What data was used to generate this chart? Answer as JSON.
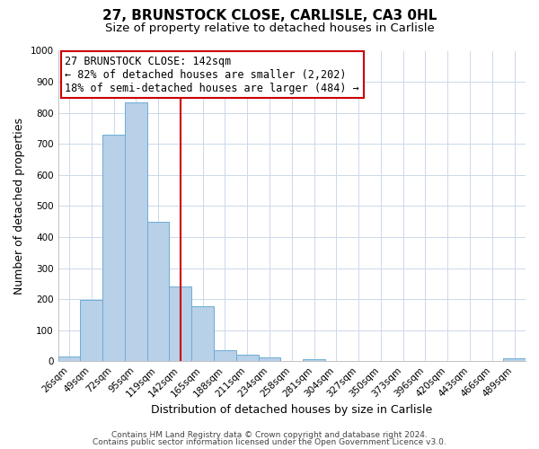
{
  "title": "27, BRUNSTOCK CLOSE, CARLISLE, CA3 0HL",
  "subtitle": "Size of property relative to detached houses in Carlisle",
  "xlabel": "Distribution of detached houses by size in Carlisle",
  "ylabel": "Number of detached properties",
  "bar_labels": [
    "26sqm",
    "49sqm",
    "72sqm",
    "95sqm",
    "119sqm",
    "142sqm",
    "165sqm",
    "188sqm",
    "211sqm",
    "234sqm",
    "258sqm",
    "281sqm",
    "304sqm",
    "327sqm",
    "350sqm",
    "373sqm",
    "396sqm",
    "420sqm",
    "443sqm",
    "466sqm",
    "489sqm"
  ],
  "bar_values": [
    15,
    196,
    731,
    833,
    450,
    240,
    178,
    35,
    22,
    13,
    0,
    5,
    0,
    0,
    0,
    0,
    0,
    0,
    0,
    0,
    8
  ],
  "bar_color": "#b8d0e8",
  "bar_edge_color": "#6aaed6",
  "vline_x": 5,
  "vline_color": "#cc0000",
  "ylim": [
    0,
    1000
  ],
  "yticks": [
    0,
    100,
    200,
    300,
    400,
    500,
    600,
    700,
    800,
    900,
    1000
  ],
  "annotation_title": "27 BRUNSTOCK CLOSE: 142sqm",
  "annotation_line1": "← 82% of detached houses are smaller (2,202)",
  "annotation_line2": "18% of semi-detached houses are larger (484) →",
  "annotation_box_color": "#cc0000",
  "footer1": "Contains HM Land Registry data © Crown copyright and database right 2024.",
  "footer2": "Contains public sector information licensed under the Open Government Licence v3.0.",
  "title_fontsize": 11,
  "subtitle_fontsize": 9.5,
  "axis_label_fontsize": 9,
  "tick_fontsize": 7.5,
  "annotation_fontsize": 8.5,
  "footer_fontsize": 6.5,
  "background_color": "#ffffff",
  "grid_color": "#ccd8ea"
}
